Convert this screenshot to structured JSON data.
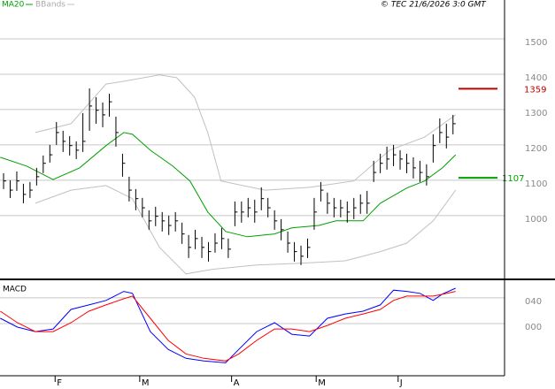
{
  "chart_data": [
    {
      "type": "ohlc",
      "credit": "© TEC 21/6/2026 3:0 GMT",
      "color": "#000000",
      "x": [
        0,
        1,
        2,
        3,
        4,
        5,
        6,
        7,
        8,
        9,
        10,
        11,
        12,
        13,
        14,
        15,
        16,
        17,
        18,
        19,
        20,
        21,
        22,
        23,
        24,
        25,
        26,
        27,
        28,
        29,
        30,
        31,
        32,
        33,
        34,
        35,
        36,
        37,
        38,
        39,
        40,
        41,
        42,
        43,
        44,
        45,
        46,
        47,
        48,
        49,
        50,
        51,
        52,
        53,
        54,
        55,
        56,
        57,
        58,
        59,
        60,
        61,
        62,
        63,
        64,
        65,
        66,
        67,
        68
      ],
      "high": [
        1120,
        1100,
        1125,
        1090,
        1095,
        1135,
        1170,
        1200,
        1265,
        1240,
        1225,
        1210,
        1290,
        1360,
        1335,
        1320,
        1345,
        1280,
        1175,
        1110,
        1075,
        1050,
        1015,
        1025,
        1010,
        1000,
        1010,
        980,
        945,
        960,
        940,
        925,
        950,
        965,
        935,
        1040,
        1040,
        1050,
        1045,
        1080,
        1050,
        1015,
        990,
        955,
        925,
        915,
        935,
        1050,
        1095,
        1065,
        1050,
        1045,
        1040,
        1050,
        1060,
        1070,
        1155,
        1175,
        1195,
        1200,
        1185,
        1175,
        1165,
        1155,
        1145,
        1230,
        1275,
        1260,
        1285
      ],
      "low": [
        1075,
        1050,
        1070,
        1035,
        1050,
        1085,
        1120,
        1150,
        1200,
        1180,
        1170,
        1160,
        1180,
        1240,
        1260,
        1250,
        1280,
        1195,
        1110,
        1040,
        1015,
        995,
        960,
        970,
        955,
        945,
        955,
        920,
        880,
        905,
        880,
        870,
        895,
        905,
        880,
        970,
        980,
        995,
        980,
        1015,
        995,
        960,
        930,
        895,
        870,
        860,
        880,
        960,
        1040,
        1005,
        995,
        995,
        980,
        990,
        1005,
        1005,
        1095,
        1120,
        1130,
        1140,
        1130,
        1120,
        1105,
        1095,
        1085,
        1150,
        1205,
        1190,
        1230
      ],
      "close": [
        1098,
        1072,
        1098,
        1060,
        1072,
        1110,
        1148,
        1172,
        1235,
        1210,
        1198,
        1185,
        1210,
        1310,
        1298,
        1285,
        1322,
        1235,
        1148,
        1072,
        1048,
        1022,
        985,
        998,
        985,
        972,
        985,
        948,
        910,
        935,
        910,
        898,
        922,
        935,
        905,
        1010,
        1010,
        1022,
        1010,
        1048,
        1022,
        985,
        960,
        922,
        898,
        885,
        910,
        1010,
        1072,
        1035,
        1022,
        1022,
        1010,
        1022,
        1035,
        1035,
        1122,
        1148,
        1160,
        1172,
        1160,
        1148,
        1135,
        1122,
        1110,
        1198,
        1235,
        1222,
        1260
      ],
      "overlays": [
        {
          "name": "MA20",
          "color": "#00a000",
          "x": [
            -0.5,
            3.5,
            7.5,
            11.5,
            15.5,
            18.2,
            19.5,
            22.2,
            25.6,
            28.2,
            30.9,
            33.6,
            36.9,
            41,
            43.6,
            47.7,
            50.3,
            54.4,
            57,
            61,
            63.7,
            66.4,
            68.4
          ],
          "values": [
            1165,
            1140,
            1102,
            1135,
            1198,
            1235,
            1230,
            1185,
            1140,
            1098,
            1010,
            955,
            940,
            948,
            965,
            972,
            985,
            985,
            1035,
            1078,
            1098,
            1135,
            1172
          ]
        },
        {
          "name": "BBands",
          "color": "#c0c0c0",
          "upper": {
            "x": [
              4.8,
              10.2,
              15.5,
              18.2,
              23.6,
              26.2,
              28.9,
              30.9,
              32.9,
              39.6,
              46.3,
              53,
              58.4,
              63.7,
              68.4
            ],
            "values": [
              1235,
              1260,
              1372,
              1380,
              1398,
              1390,
              1335,
              1235,
              1098,
              1072,
              1080,
              1098,
              1185,
              1222,
              1285
            ]
          },
          "lower": {
            "x": [
              4.8,
              10.2,
              15.5,
              19.5,
              23.6,
              27.6,
              31.6,
              38.3,
              45,
              51.7,
              57,
              61,
              65,
              68.4
            ],
            "values": [
              1035,
              1072,
              1085,
              1048,
              910,
              835,
              848,
              860,
              865,
              872,
              898,
              922,
              985,
              1072
            ]
          }
        }
      ],
      "levels": [
        {
          "value": 1359,
          "color": "#c00000"
        },
        {
          "value": 1107,
          "color": "#00a000"
        }
      ],
      "xlim": [
        -0.54,
        75.8
      ],
      "ylim": [
        822,
        1610
      ],
      "yticks": [
        1000,
        1100,
        1200,
        1300,
        1400,
        1500
      ]
    },
    {
      "type": "line",
      "title": "MACD",
      "x": [
        -0.5,
        2.1,
        4.8,
        7.5,
        10.2,
        12.9,
        15.5,
        18.2,
        19.5,
        22.2,
        24.9,
        27.6,
        30.3,
        33.6,
        35.6,
        38.3,
        41,
        43.6,
        46.3,
        49,
        51.7,
        54.4,
        57,
        59,
        61,
        63,
        65,
        66.4,
        68.4
      ],
      "series": [
        {
          "color": "#0000ff",
          "values": [
            8.3,
            -5.5,
            -12.4,
            -8.3,
            22,
            29,
            36,
            50,
            47,
            -12.4,
            -40,
            -54,
            -58,
            -61,
            -40,
            -12.4,
            1.4,
            -16.6,
            -19.3,
            8.3,
            15,
            19.3,
            29,
            52,
            50,
            47,
            36,
            46,
            55
          ]
        },
        {
          "color": "#ff0000",
          "values": [
            19.3,
            1.4,
            -12.4,
            -12.4,
            1.4,
            19.3,
            29,
            38.6,
            42.8,
            8.3,
            -26,
            -47,
            -54,
            -58,
            -47,
            -26,
            -8.3,
            -8.3,
            -12.4,
            -2.8,
            8.3,
            15,
            22,
            36,
            42.8,
            42.8,
            42.8,
            45.5,
            50
          ]
        }
      ],
      "xlim": [
        -0.54,
        75.8
      ],
      "ylim": [
        -81,
        66
      ],
      "yticks": [
        {
          "value": 40,
          "label": "040"
        },
        {
          "value": 0,
          "label": "000"
        }
      ],
      "xticks": [
        {
          "value": 7.8,
          "label": "F"
        },
        {
          "value": 20.6,
          "label": "M"
        },
        {
          "value": 34.5,
          "label": "A"
        },
        {
          "value": 47.3,
          "label": "M"
        },
        {
          "value": 59.7,
          "label": "J"
        }
      ]
    }
  ]
}
